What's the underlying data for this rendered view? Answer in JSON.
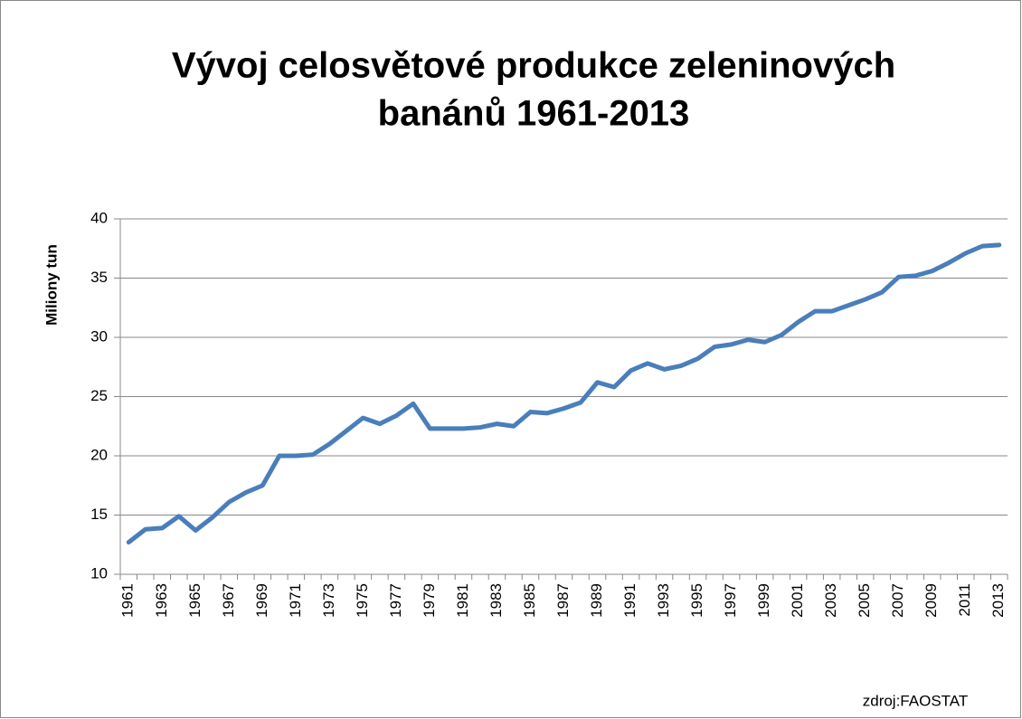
{
  "chart_data": {
    "type": "line",
    "title": "Vývoj celosvětové produkce zeleninových",
    "title_line2": "banánů 1961-2013",
    "y_label": "Miliony tun",
    "source": "zdroj:FAOSTAT",
    "categories": [
      "1961",
      null,
      "1963",
      null,
      "1965",
      null,
      "1967",
      null,
      "1969",
      null,
      "1971",
      null,
      "1973",
      null,
      "1975",
      null,
      "1977",
      null,
      "1979",
      null,
      "1981",
      null,
      "1983",
      null,
      "1985",
      null,
      "1987",
      null,
      "1989",
      null,
      "1991",
      null,
      "1993",
      null,
      "1995",
      null,
      "1997",
      null,
      "1999",
      null,
      "2001",
      null,
      "2003",
      null,
      "2005",
      null,
      "2007",
      null,
      "2009",
      null,
      "2011",
      null,
      "2013"
    ],
    "series": [
      {
        "name": "Miliony tun",
        "color": "#4a7ebb",
        "values": [
          12.7,
          13.8,
          13.9,
          14.9,
          13.7,
          14.8,
          16.1,
          16.9,
          17.5,
          20.0,
          20.0,
          20.1,
          21.0,
          22.1,
          23.2,
          22.7,
          23.4,
          24.4,
          22.3,
          22.3,
          22.3,
          22.4,
          22.7,
          22.5,
          23.7,
          23.6,
          24.0,
          24.5,
          26.2,
          25.8,
          27.2,
          27.8,
          27.3,
          27.6,
          28.2,
          29.2,
          29.4,
          29.8,
          29.6,
          30.2,
          31.3,
          32.2,
          32.2,
          32.7,
          33.2,
          33.8,
          35.1,
          35.2,
          35.6,
          36.3,
          37.1,
          37.7,
          37.8
        ]
      }
    ],
    "ylim": [
      10,
      40
    ],
    "yticks": [
      10,
      15,
      20,
      25,
      30,
      35,
      40
    ],
    "grid": true
  }
}
